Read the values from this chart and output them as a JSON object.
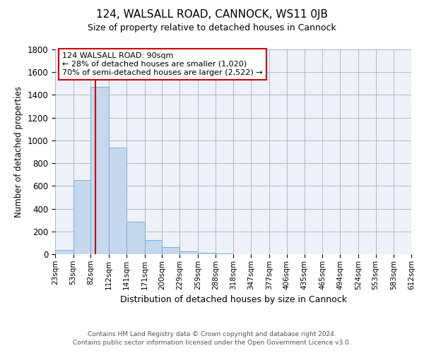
{
  "title": "124, WALSALL ROAD, CANNOCK, WS11 0JB",
  "subtitle": "Size of property relative to detached houses in Cannock",
  "xlabel": "Distribution of detached houses by size in Cannock",
  "ylabel": "Number of detached properties",
  "bar_values": [
    40,
    650,
    1470,
    940,
    285,
    125,
    65,
    25,
    15,
    5,
    0,
    0,
    0,
    0,
    0,
    0,
    0,
    0,
    0,
    0
  ],
  "bin_edges": [
    23,
    53,
    82,
    112,
    141,
    171,
    200,
    229,
    259,
    288,
    318,
    347,
    377,
    406,
    435,
    465,
    494,
    524,
    553,
    583,
    612
  ],
  "bar_color": "#c5d8ee",
  "bar_edge_color": "#7aafd4",
  "grid_color": "#b0b8c8",
  "background_color": "#ffffff",
  "plot_background": "#eef2f8",
  "red_line_x": 90,
  "ylim": [
    0,
    1800
  ],
  "yticks": [
    0,
    200,
    400,
    600,
    800,
    1000,
    1200,
    1400,
    1600,
    1800
  ],
  "annotation_text_line1": "124 WALSALL ROAD: 90sqm",
  "annotation_text_line2": "← 28% of detached houses are smaller (1,020)",
  "annotation_text_line3": "70% of semi-detached houses are larger (2,522) →",
  "annotation_color": "#cc0000",
  "footer1": "Contains HM Land Registry data © Crown copyright and database right 2024.",
  "footer2": "Contains public sector information licensed under the Open Government Licence v3.0."
}
